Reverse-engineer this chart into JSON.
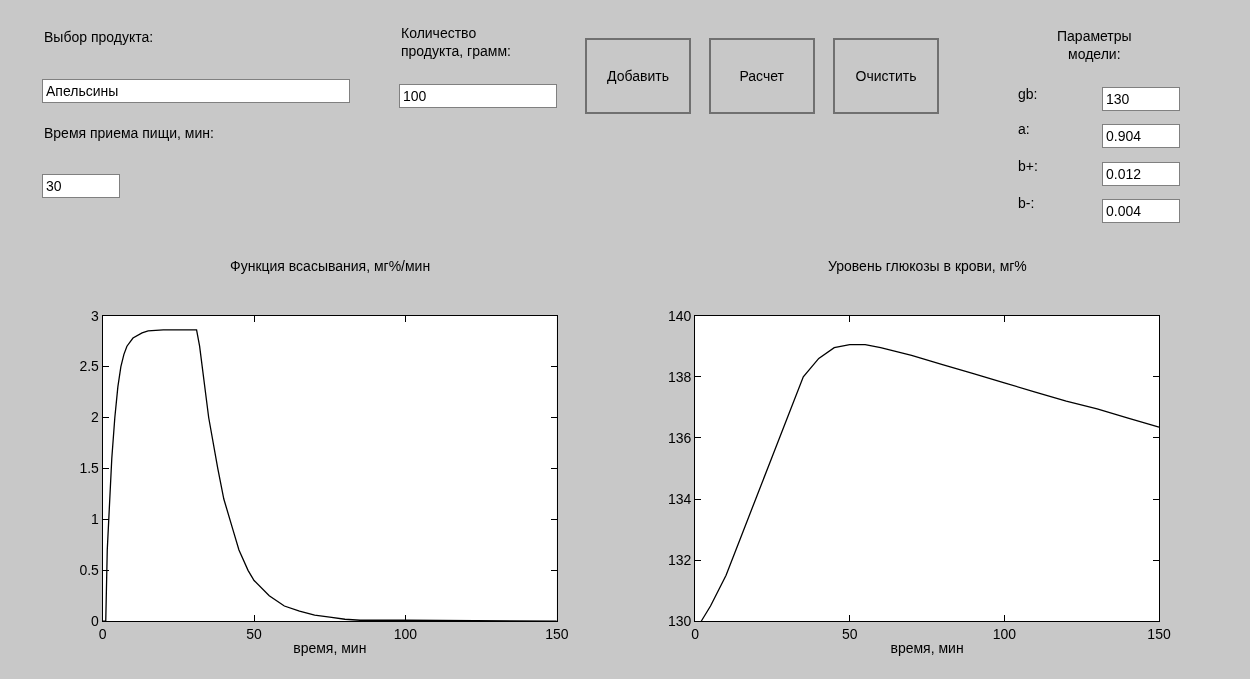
{
  "chart_data": [
    {
      "type": "other",
      "annotations": [
        "Выбор продукта:",
        "Апельсины",
        "Время приема пищи, мин:",
        "30",
        "Количество\nпродукта, грамм:",
        "100",
        "Добавить",
        "Расчет",
        "Очистить",
        "Параметры\nмодели:",
        "gb:",
        "130",
        "a:",
        "0.904",
        "b+:",
        "0.012",
        "b-:",
        "0.004"
      ]
    },
    {
      "type": "line",
      "title": "Функция всасывания, мг%/мин",
      "xlabel": "время, мин",
      "color": "#000000",
      "x": [
        0,
        1,
        1.5,
        2,
        3,
        4,
        5,
        6,
        7,
        8,
        10,
        13,
        15,
        20,
        31,
        32,
        35,
        38,
        40,
        43,
        45,
        48,
        50,
        55,
        60,
        65,
        70,
        75,
        80,
        85,
        100,
        150
      ],
      "values": [
        0,
        0,
        0.7,
        1.0,
        1.6,
        2.0,
        2.3,
        2.5,
        2.62,
        2.7,
        2.78,
        2.83,
        2.85,
        2.86,
        2.86,
        2.7,
        2.0,
        1.5,
        1.2,
        0.9,
        0.7,
        0.5,
        0.4,
        0.25,
        0.15,
        0.1,
        0.06,
        0.04,
        0.02,
        0.01,
        0.01,
        0
      ],
      "xlim": [
        0,
        150
      ],
      "xticks": [
        0,
        50,
        100,
        150
      ],
      "ylim": [
        0,
        3
      ],
      "yticks": [
        0,
        0.5,
        1,
        1.5,
        2,
        2.5,
        3
      ]
    },
    {
      "type": "line",
      "title": "Уровень глюкозы в крови, мг%",
      "xlabel": "время, мин",
      "color": "#000000",
      "x": [
        2,
        5,
        10,
        15,
        20,
        25,
        30,
        35,
        40,
        45,
        50,
        55,
        60,
        70,
        80,
        90,
        100,
        110,
        120,
        130,
        140,
        150
      ],
      "values": [
        130,
        130.5,
        131.5,
        132.8,
        134.1,
        135.4,
        136.7,
        138.0,
        138.6,
        138.95,
        139.05,
        139.05,
        138.95,
        138.7,
        138.4,
        138.1,
        137.8,
        137.5,
        137.2,
        136.95,
        136.65,
        136.35
      ],
      "xlim": [
        0,
        150
      ],
      "xticks": [
        0,
        50,
        100,
        150
      ],
      "ylim": [
        130,
        140
      ],
      "yticks": [
        130,
        132,
        134,
        136,
        138,
        140
      ]
    }
  ]
}
